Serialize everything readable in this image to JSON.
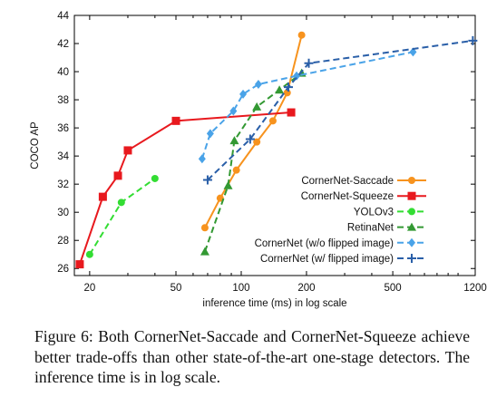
{
  "chart_data": {
    "type": "line",
    "xlabel": "inference time (ms) in log scale",
    "ylabel": "COCO AP",
    "xscale": "log",
    "xlim": [
      17,
      1200
    ],
    "ylim": [
      25.5,
      44
    ],
    "xticks": [
      20,
      50,
      100,
      200,
      500,
      1200
    ],
    "yticks": [
      26,
      28,
      30,
      32,
      34,
      36,
      38,
      40,
      42,
      44
    ],
    "grid": false,
    "legend_position": "bottom-right",
    "series": [
      {
        "name": "CornerNet-Saccade",
        "color": "#f7931e",
        "marker": "circle",
        "dash": "solid",
        "x": [
          68,
          80,
          95,
          118,
          140,
          163,
          190
        ],
        "y": [
          28.9,
          31.0,
          33.0,
          35.0,
          36.5,
          38.5,
          42.6
        ]
      },
      {
        "name": "CornerNet-Squeeze",
        "color": "#e8191e",
        "marker": "square",
        "dash": "solid",
        "x": [
          18,
          23,
          27,
          30,
          50,
          170
        ],
        "y": [
          26.3,
          31.1,
          32.6,
          34.4,
          36.5,
          37.1
        ]
      },
      {
        "name": "YOLOv3",
        "color": "#33dd33",
        "marker": "circle",
        "dash": "dashed",
        "x": [
          20,
          28,
          40
        ],
        "y": [
          27.0,
          30.7,
          32.4
        ]
      },
      {
        "name": "RetinaNet",
        "color": "#339933",
        "marker": "triangle",
        "dash": "dashed",
        "x": [
          68,
          87,
          93,
          118,
          150,
          190
        ],
        "y": [
          27.2,
          31.9,
          35.1,
          37.5,
          38.7,
          39.9
        ]
      },
      {
        "name": "CornerNet (w/o flipped image)",
        "color": "#4aa3e8",
        "marker": "diamond",
        "dash": "dashed",
        "x": [
          66,
          72,
          92,
          102,
          120,
          180,
          620
        ],
        "y": [
          33.8,
          35.6,
          37.2,
          38.4,
          39.1,
          39.7,
          41.4
        ]
      },
      {
        "name": "CornerNet (w/ flipped image)",
        "color": "#2a5fa8",
        "marker": "plus",
        "dash": "dashed",
        "x": [
          70,
          110,
          165,
          205,
          1170
        ],
        "y": [
          32.3,
          35.2,
          38.9,
          40.6,
          42.2
        ]
      }
    ]
  },
  "caption": "Figure 6: Both CornerNet-Saccade and CornerNet-Squeeze achieve better trade-offs than other state-of-the-art one-stage detectors. The inference time is in log scale."
}
